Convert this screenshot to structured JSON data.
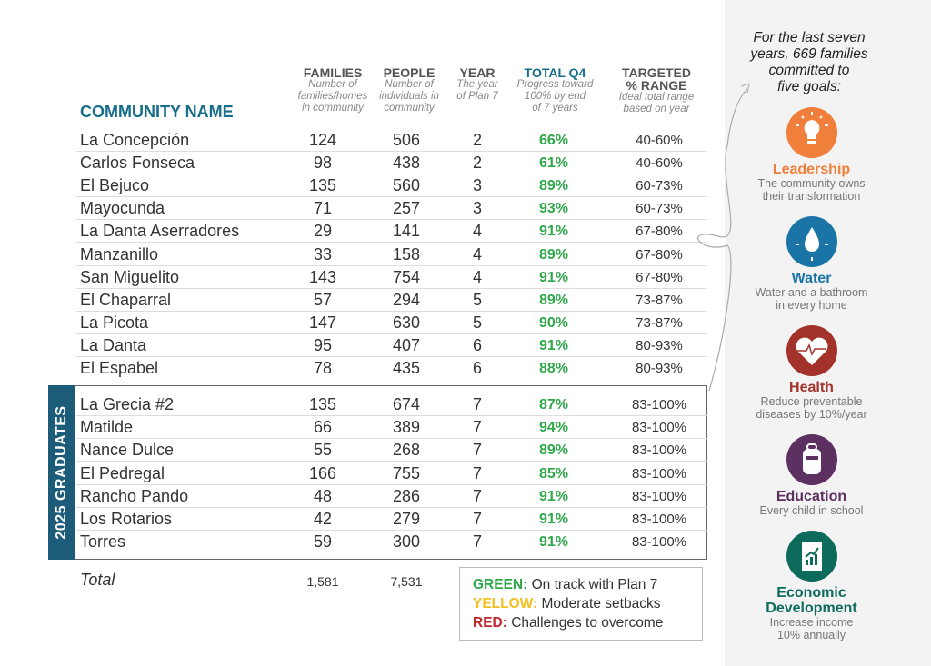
{
  "header": {
    "community": "COMMUNITY NAME",
    "families": {
      "title": "FAMILIES",
      "sub": [
        "Number of",
        "families/homes",
        "in community"
      ]
    },
    "people": {
      "title": "PEOPLE",
      "sub": [
        "Number of",
        "individuals in",
        "community"
      ]
    },
    "year": {
      "title": "YEAR",
      "sub": [
        "The year",
        "of Plan 7"
      ]
    },
    "total": {
      "title": "TOTAL Q4",
      "sub": [
        "Progress toward",
        "100% by end",
        "of 7 years"
      ]
    },
    "range": {
      "title": [
        "TARGETED",
        "% RANGE"
      ],
      "sub": [
        "Ideal total range",
        "based on year"
      ]
    }
  },
  "rows": [
    [
      "La Concepción",
      "124",
      "506",
      "2",
      "66%",
      "40-60%"
    ],
    [
      "Carlos Fonseca",
      "98",
      "438",
      "2",
      "61%",
      "40-60%"
    ],
    [
      "El Bejuco",
      "135",
      "560",
      "3",
      "89%",
      "60-73%"
    ],
    [
      "Mayocunda",
      "71",
      "257",
      "3",
      "93%",
      "60-73%"
    ],
    [
      "La Danta Aserradores",
      "29",
      "141",
      "4",
      "91%",
      "67-80%"
    ],
    [
      "Manzanillo",
      "33",
      "158",
      "4",
      "89%",
      "67-80%"
    ],
    [
      "San Miguelito",
      "143",
      "754",
      "4",
      "91%",
      "67-80%"
    ],
    [
      "El Chaparral",
      "57",
      "294",
      "5",
      "89%",
      "73-87%"
    ],
    [
      "La Picota",
      "147",
      "630",
      "5",
      "90%",
      "73-87%"
    ],
    [
      "La Danta",
      "95",
      "407",
      "6",
      "91%",
      "80-93%"
    ],
    [
      "El Espabel",
      "78",
      "435",
      "6",
      "88%",
      "80-93%"
    ],
    [
      "La Grecia #2",
      "135",
      "674",
      "7",
      "87%",
      "83-100%"
    ],
    [
      "Matilde",
      "66",
      "389",
      "7",
      "94%",
      "83-100%"
    ],
    [
      "Nance Dulce",
      "55",
      "268",
      "7",
      "89%",
      "83-100%"
    ],
    [
      "El Pedregal",
      "166",
      "755",
      "7",
      "85%",
      "83-100%"
    ],
    [
      "Rancho Pando",
      "48",
      "286",
      "7",
      "91%",
      "83-100%"
    ],
    [
      "Los Rotarios",
      "42",
      "279",
      "7",
      "91%",
      "83-100%"
    ],
    [
      "Torres",
      "59",
      "300",
      "7",
      "91%",
      "83-100%"
    ]
  ],
  "graduates_label": "2025 GRADUATES",
  "total": {
    "label": "Total",
    "families": "1,581",
    "people": "7,531"
  },
  "legend": [
    {
      "key": "GREEN:",
      "text": " On track with Plan 7",
      "color": "#2fa84a"
    },
    {
      "key": "YELLOW:",
      "text": " Moderate setbacks",
      "color": "#f2c01e"
    },
    {
      "key": "RED:",
      "text": " Challenges to overcome",
      "color": "#c0272d"
    }
  ],
  "sidebar": {
    "intro": [
      "For the last seven",
      "years, 669 families",
      "committed to",
      "five goals:"
    ],
    "goals": [
      {
        "title": "Leadership",
        "desc": [
          "The community owns",
          "their transformation"
        ],
        "color": "#f07f3c",
        "icon": "lightbulb-icon"
      },
      {
        "title": "Water",
        "desc": [
          "Water and a bathroom",
          "in every home"
        ],
        "color": "#1a75a6",
        "icon": "water-drop-icon"
      },
      {
        "title": "Health",
        "desc": [
          "Reduce preventable",
          "diseases by 10%/year"
        ],
        "color": "#a3322a",
        "icon": "heart-pulse-icon"
      },
      {
        "title": "Education",
        "desc": [
          "Every child in school"
        ],
        "color": "#5c3060",
        "icon": "backpack-icon"
      },
      {
        "title": "Economic Development",
        "desc": [
          "Increase income",
          "10% annually"
        ],
        "color": "#0d6b5c",
        "icon": "growth-chart-icon"
      }
    ]
  }
}
